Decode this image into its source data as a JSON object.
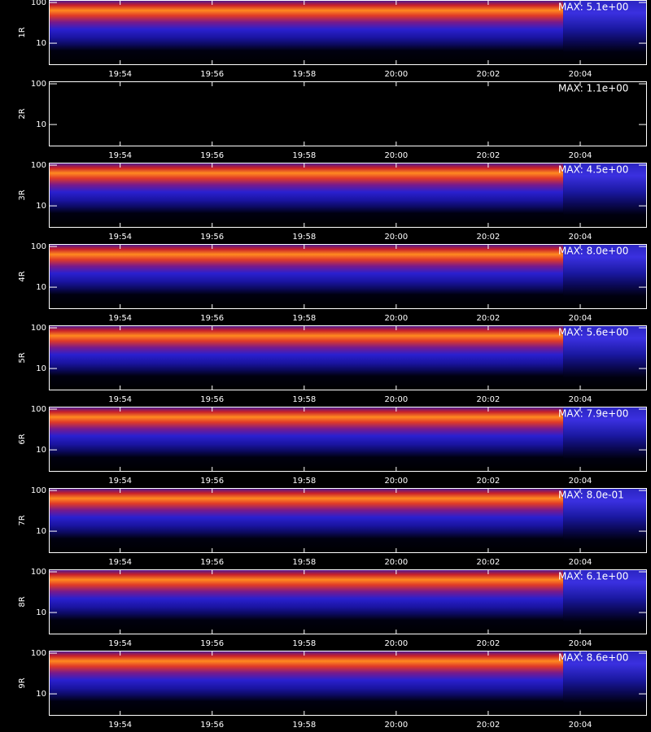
{
  "chart_data": [
    {
      "type": "spectrogram",
      "y_label": "1R",
      "max_label": "MAX: 5.1e+00",
      "spectrogram": true,
      "xlim": [
        1192.45,
        1205.45
      ],
      "xticks": [
        {
          "value": 1194,
          "label": "19:54"
        },
        {
          "value": 1196,
          "label": "19:56"
        },
        {
          "value": 1198,
          "label": "19:58"
        },
        {
          "value": 1200,
          "label": "20:00"
        },
        {
          "value": 1202,
          "label": "20:02"
        },
        {
          "value": 1204,
          "label": "20:04"
        }
      ],
      "ylim": [
        2.9,
        115
      ],
      "yticks": [
        10,
        100
      ],
      "log_scale": true
    },
    {
      "type": "spectrogram",
      "y_label": "2R",
      "max_label": "MAX: 1.1e+00",
      "spectrogram": false,
      "xlim": [
        1192.45,
        1205.45
      ],
      "xticks": [
        {
          "value": 1194,
          "label": "19:54"
        },
        {
          "value": 1196,
          "label": "19:56"
        },
        {
          "value": 1198,
          "label": "19:58"
        },
        {
          "value": 1200,
          "label": "20:00"
        },
        {
          "value": 1202,
          "label": "20:02"
        },
        {
          "value": 1204,
          "label": "20:04"
        }
      ],
      "ylim": [
        2.9,
        115
      ],
      "yticks": [
        10,
        100
      ],
      "log_scale": true
    },
    {
      "type": "spectrogram",
      "y_label": "3R",
      "max_label": "MAX: 4.5e+00",
      "spectrogram": true,
      "xlim": [
        1192.45,
        1205.45
      ],
      "xticks": [
        {
          "value": 1194,
          "label": "19:54"
        },
        {
          "value": 1196,
          "label": "19:56"
        },
        {
          "value": 1198,
          "label": "19:58"
        },
        {
          "value": 1200,
          "label": "20:00"
        },
        {
          "value": 1202,
          "label": "20:02"
        },
        {
          "value": 1204,
          "label": "20:04"
        }
      ],
      "ylim": [
        2.9,
        115
      ],
      "yticks": [
        10,
        100
      ],
      "log_scale": true
    },
    {
      "type": "spectrogram",
      "y_label": "4R",
      "max_label": "MAX: 8.0e+00",
      "spectrogram": true,
      "xlim": [
        1192.45,
        1205.45
      ],
      "xticks": [
        {
          "value": 1194,
          "label": "19:54"
        },
        {
          "value": 1196,
          "label": "19:56"
        },
        {
          "value": 1198,
          "label": "19:58"
        },
        {
          "value": 1200,
          "label": "20:00"
        },
        {
          "value": 1202,
          "label": "20:02"
        },
        {
          "value": 1204,
          "label": "20:04"
        }
      ],
      "ylim": [
        2.9,
        115
      ],
      "yticks": [
        10,
        100
      ],
      "log_scale": true
    },
    {
      "type": "spectrogram",
      "y_label": "5R",
      "max_label": "MAX: 5.6e+00",
      "spectrogram": true,
      "xlim": [
        1192.45,
        1205.45
      ],
      "xticks": [
        {
          "value": 1194,
          "label": "19:54"
        },
        {
          "value": 1196,
          "label": "19:56"
        },
        {
          "value": 1198,
          "label": "19:58"
        },
        {
          "value": 1200,
          "label": "20:00"
        },
        {
          "value": 1202,
          "label": "20:02"
        },
        {
          "value": 1204,
          "label": "20:04"
        }
      ],
      "ylim": [
        2.9,
        115
      ],
      "yticks": [
        10,
        100
      ],
      "log_scale": true
    },
    {
      "type": "spectrogram",
      "y_label": "6R",
      "max_label": "MAX: 7.9e+00",
      "spectrogram": true,
      "xlim": [
        1192.45,
        1205.45
      ],
      "xticks": [
        {
          "value": 1194,
          "label": "19:54"
        },
        {
          "value": 1196,
          "label": "19:56"
        },
        {
          "value": 1198,
          "label": "19:58"
        },
        {
          "value": 1200,
          "label": "20:00"
        },
        {
          "value": 1202,
          "label": "20:02"
        },
        {
          "value": 1204,
          "label": "20:04"
        }
      ],
      "ylim": [
        2.9,
        115
      ],
      "yticks": [
        10,
        100
      ],
      "log_scale": true
    },
    {
      "type": "spectrogram",
      "y_label": "7R",
      "max_label": "MAX: 8.0e-01",
      "spectrogram": true,
      "xlim": [
        1192.45,
        1205.45
      ],
      "xticks": [
        {
          "value": 1194,
          "label": "19:54"
        },
        {
          "value": 1196,
          "label": "19:56"
        },
        {
          "value": 1198,
          "label": "19:58"
        },
        {
          "value": 1200,
          "label": "20:00"
        },
        {
          "value": 1202,
          "label": "20:02"
        },
        {
          "value": 1204,
          "label": "20:04"
        }
      ],
      "ylim": [
        2.9,
        115
      ],
      "yticks": [
        10,
        100
      ],
      "log_scale": true
    },
    {
      "type": "spectrogram",
      "y_label": "8R",
      "max_label": "MAX: 6.1e+00",
      "spectrogram": true,
      "xlim": [
        1192.45,
        1205.45
      ],
      "xticks": [
        {
          "value": 1194,
          "label": "19:54"
        },
        {
          "value": 1196,
          "label": "19:56"
        },
        {
          "value": 1198,
          "label": "19:58"
        },
        {
          "value": 1200,
          "label": "20:00"
        },
        {
          "value": 1202,
          "label": "20:02"
        },
        {
          "value": 1204,
          "label": "20:04"
        }
      ],
      "ylim": [
        2.9,
        115
      ],
      "yticks": [
        10,
        100
      ],
      "log_scale": true
    },
    {
      "type": "spectrogram",
      "y_label": "9R",
      "max_label": "MAX: 8.6e+00",
      "spectrogram": true,
      "xlim": [
        1192.45,
        1205.45
      ],
      "xticks": [
        {
          "value": 1194,
          "label": "19:54"
        },
        {
          "value": 1196,
          "label": "19:56"
        },
        {
          "value": 1198,
          "label": "19:58"
        },
        {
          "value": 1200,
          "label": "20:00"
        },
        {
          "value": 1202,
          "label": "20:02"
        },
        {
          "value": 1204,
          "label": "20:04"
        }
      ],
      "ylim": [
        2.9,
        115
      ],
      "yticks": [
        10,
        100
      ],
      "log_scale": true
    }
  ]
}
